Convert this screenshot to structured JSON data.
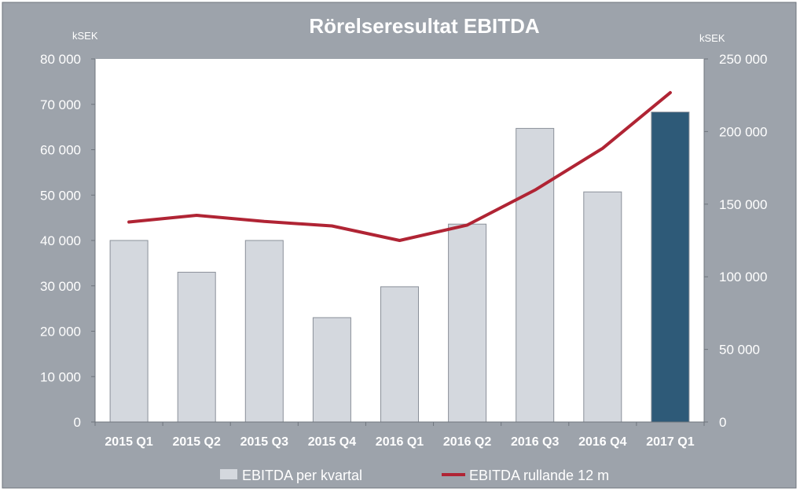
{
  "chart_data": {
    "type": "bar+line",
    "title": "Rörelseresultat EBITDA",
    "y_unit_left": "kSEK",
    "y_unit_right": "kSEK",
    "categories": [
      "2015 Q1",
      "2015 Q2",
      "2015 Q3",
      "2015 Q4",
      "2016 Q1",
      "2016 Q2",
      "2016 Q3",
      "2016 Q4",
      "2017 Q1"
    ],
    "y_left": {
      "min": 0,
      "max": 80000,
      "step": 10000,
      "tick_labels": [
        "0",
        "10 000",
        "20 000",
        "30 000",
        "40 000",
        "50 000",
        "60 000",
        "70 000",
        "80 000"
      ]
    },
    "y_right": {
      "min": 0,
      "max": 250000,
      "step": 50000,
      "tick_labels": [
        "0",
        "50 000",
        "100 000",
        "150 000",
        "200 000",
        "250 000"
      ]
    },
    "series": [
      {
        "name": "EBITDA per kvartal",
        "type": "bar",
        "axis": "left",
        "values": [
          40000,
          33000,
          40000,
          23000,
          29800,
          43600,
          64700,
          50700,
          68300
        ],
        "color": "#d4d8de",
        "highlight_color": "#2e5a78",
        "highlight_index": 8
      },
      {
        "name": "EBITDA rullande 12 m",
        "type": "line",
        "axis": "right",
        "values": [
          137700,
          142300,
          138100,
          135000,
          125000,
          135600,
          159700,
          188400,
          226800
        ],
        "color": "#b02434"
      }
    ],
    "grid": false,
    "legend": "bottom",
    "plot_background": "#ffffff",
    "chart_background": "#9da3ab"
  }
}
